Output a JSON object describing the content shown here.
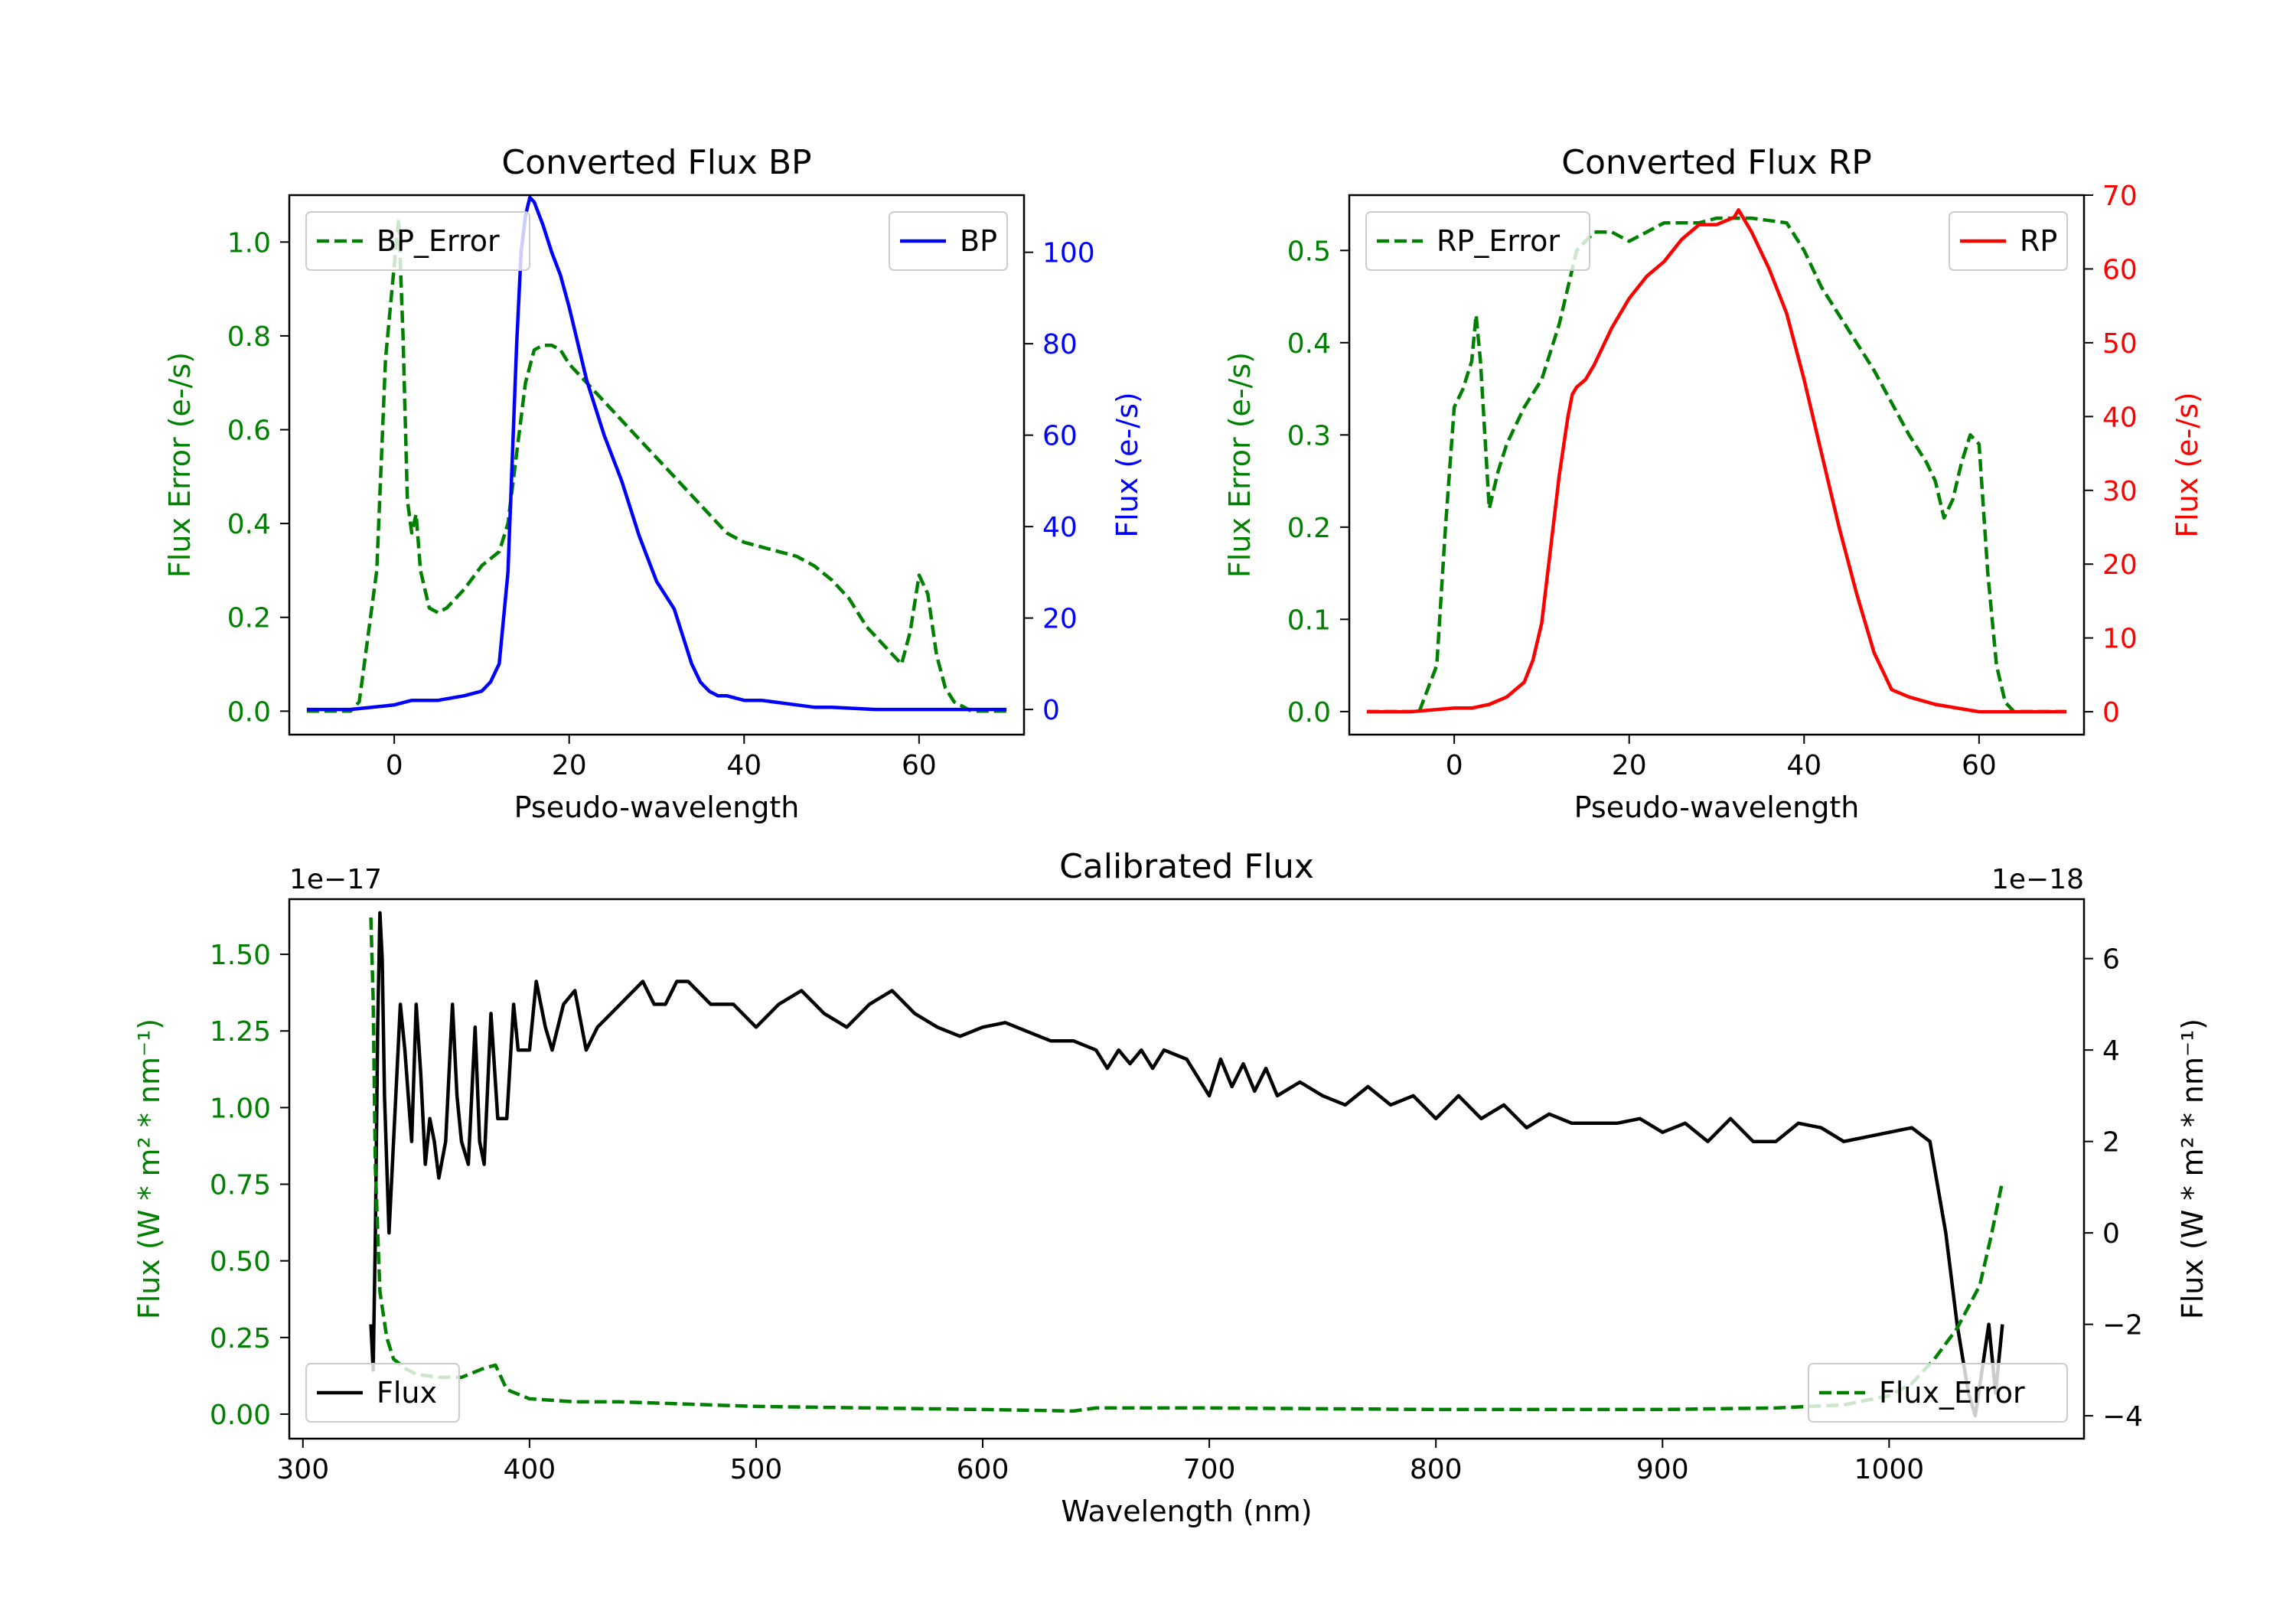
{
  "colors": {
    "green": "#008000",
    "blue": "#0000ff",
    "red": "#ff0000",
    "black": "#000000"
  },
  "chart_data": [
    {
      "type": "line",
      "title": "Converted Flux BP",
      "xlabel": "Pseudo-wavelength",
      "xlim": [
        -12,
        72
      ],
      "xticks": [
        0,
        20,
        40,
        60
      ],
      "left_axis": {
        "label": "Flux Error (e-/s)",
        "color": "green",
        "ylim": [
          -0.05,
          1.1
        ],
        "ticks": [
          0.0,
          0.2,
          0.4,
          0.6,
          0.8,
          1.0
        ],
        "tick_labels": [
          "0.0",
          "0.2",
          "0.4",
          "0.6",
          "0.8",
          "1.0"
        ],
        "offset_label": ""
      },
      "right_axis": {
        "label": "Flux (e-/s)",
        "color": "blue",
        "ylim": [
          -5.5,
          112.5
        ],
        "ticks": [
          0,
          20,
          40,
          60,
          80,
          100
        ],
        "tick_labels": [
          "0",
          "20",
          "40",
          "60",
          "80",
          "100"
        ],
        "offset_label": ""
      },
      "series": [
        {
          "name": "BP_Error",
          "axis": "left",
          "color": "green",
          "style": "dashed",
          "legend": "top-left",
          "x": [
            -10,
            -5,
            -4,
            -2,
            -1,
            0,
            0.5,
            1,
            1.5,
            2,
            2.5,
            3,
            4,
            5,
            6,
            8,
            10,
            12,
            13,
            14,
            15,
            16,
            17,
            18,
            19,
            20,
            22,
            24,
            26,
            28,
            30,
            32,
            34,
            36,
            38,
            40,
            44,
            46,
            48,
            50,
            52,
            54,
            56,
            58,
            59,
            60,
            61,
            62,
            63,
            64,
            66,
            70
          ],
          "y": [
            0.0,
            0.0,
            0.02,
            0.3,
            0.75,
            0.95,
            1.05,
            0.8,
            0.45,
            0.38,
            0.42,
            0.3,
            0.22,
            0.21,
            0.22,
            0.26,
            0.31,
            0.34,
            0.4,
            0.55,
            0.7,
            0.77,
            0.78,
            0.78,
            0.77,
            0.74,
            0.7,
            0.66,
            0.62,
            0.58,
            0.54,
            0.5,
            0.46,
            0.42,
            0.38,
            0.36,
            0.34,
            0.33,
            0.31,
            0.28,
            0.24,
            0.18,
            0.14,
            0.1,
            0.17,
            0.29,
            0.25,
            0.12,
            0.05,
            0.02,
            0.0,
            0.0
          ]
        },
        {
          "name": "BP",
          "axis": "right",
          "color": "blue",
          "style": "solid",
          "legend": "top-right",
          "x": [
            -10,
            -5,
            0,
            2,
            5,
            8,
            10,
            11,
            12,
            13,
            13.5,
            14,
            14.5,
            15,
            15.5,
            16,
            17,
            18,
            19,
            20,
            22,
            24,
            26,
            28,
            30,
            32,
            33,
            34,
            35,
            36,
            37,
            38,
            40,
            42,
            44,
            46,
            48,
            50,
            55,
            60,
            65,
            70
          ],
          "y": [
            0,
            0,
            1,
            2,
            2,
            3,
            4,
            6,
            10,
            30,
            55,
            80,
            100,
            108,
            112,
            111,
            106,
            100,
            95,
            88,
            72,
            60,
            50,
            38,
            28,
            22,
            16,
            10,
            6,
            4,
            3,
            3,
            2,
            2,
            1.5,
            1,
            0.5,
            0.5,
            0,
            0,
            0,
            0
          ]
        }
      ]
    },
    {
      "type": "line",
      "title": "Converted Flux RP",
      "xlabel": "Pseudo-wavelength",
      "xlim": [
        -12,
        72
      ],
      "xticks": [
        0,
        20,
        40,
        60
      ],
      "left_axis": {
        "label": "Flux Error (e-/s)",
        "color": "green",
        "ylim": [
          -0.025,
          0.56
        ],
        "ticks": [
          0.0,
          0.1,
          0.2,
          0.3,
          0.4,
          0.5
        ],
        "tick_labels": [
          "0.0",
          "0.1",
          "0.2",
          "0.3",
          "0.4",
          "0.5"
        ],
        "offset_label": ""
      },
      "right_axis": {
        "label": "Flux (e-/s)",
        "color": "red",
        "ylim": [
          -3.1,
          70
        ],
        "ticks": [
          0,
          10,
          20,
          30,
          40,
          50,
          60,
          70
        ],
        "tick_labels": [
          "0",
          "10",
          "20",
          "30",
          "40",
          "50",
          "60",
          "70"
        ],
        "offset_label": ""
      },
      "series": [
        {
          "name": "RP_Error",
          "axis": "left",
          "color": "green",
          "style": "dashed",
          "legend": "top-left",
          "x": [
            -10,
            -4,
            -2,
            -1,
            0,
            1,
            2,
            2.5,
            3,
            4,
            5,
            6,
            8,
            10,
            12,
            14,
            16,
            18,
            20,
            22,
            24,
            26,
            28,
            30,
            34,
            38,
            40,
            42,
            44,
            48,
            52,
            54,
            55,
            56,
            57,
            58,
            59,
            60,
            61,
            62,
            63,
            64,
            66,
            70
          ],
          "y": [
            0.0,
            0.0,
            0.05,
            0.2,
            0.33,
            0.35,
            0.38,
            0.43,
            0.38,
            0.22,
            0.26,
            0.29,
            0.33,
            0.36,
            0.42,
            0.5,
            0.52,
            0.52,
            0.51,
            0.52,
            0.53,
            0.53,
            0.53,
            0.535,
            0.535,
            0.53,
            0.5,
            0.46,
            0.43,
            0.37,
            0.3,
            0.27,
            0.25,
            0.21,
            0.23,
            0.27,
            0.3,
            0.29,
            0.15,
            0.05,
            0.01,
            0.0,
            0.0,
            0.0
          ]
        },
        {
          "name": "RP",
          "axis": "right",
          "color": "red",
          "style": "solid",
          "legend": "top-right",
          "x": [
            -10,
            -5,
            0,
            2,
            4,
            6,
            8,
            9,
            10,
            11,
            12,
            13,
            13.5,
            14,
            15,
            16,
            18,
            20,
            22,
            24,
            26,
            28,
            30,
            32,
            32.5,
            34,
            36,
            38,
            40,
            42,
            44,
            46,
            48,
            50,
            52,
            55,
            60,
            65,
            70
          ],
          "y": [
            0,
            0,
            0.5,
            0.5,
            1,
            2,
            4,
            7,
            12,
            22,
            32,
            40,
            43,
            44,
            45,
            47,
            52,
            56,
            59,
            61,
            64,
            66,
            66,
            67,
            68,
            65,
            60,
            54,
            45,
            35,
            25,
            16,
            8,
            3,
            2,
            1,
            0,
            0,
            0
          ]
        }
      ]
    },
    {
      "type": "line",
      "title": "Calibrated Flux",
      "xlabel": "Wavelength (nm)",
      "xlim": [
        294,
        1086
      ],
      "xticks": [
        300,
        400,
        500,
        600,
        700,
        800,
        900,
        1000
      ],
      "left_axis": {
        "label": "Flux (W * m² * nm⁻¹)",
        "color": "green",
        "ylim": [
          -0.08,
          1.68
        ],
        "ticks": [
          0.0,
          0.25,
          0.5,
          0.75,
          1.0,
          1.25,
          1.5
        ],
        "tick_labels": [
          "0.00",
          "0.25",
          "0.50",
          "0.75",
          "1.00",
          "1.25",
          "1.50"
        ],
        "offset_label": "1e−17"
      },
      "right_axis": {
        "label": "Flux (W * m² * nm⁻¹)",
        "color": "black",
        "ylim": [
          -4.5,
          7.3
        ],
        "ticks": [
          -4,
          -2,
          0,
          2,
          4,
          6
        ],
        "tick_labels": [
          "−4",
          "−2",
          "0",
          "2",
          "4",
          "6"
        ],
        "offset_label": "1e−18"
      },
      "series": [
        {
          "name": "Flux",
          "axis": "right",
          "color": "black",
          "style": "solid",
          "legend": "bottom-left",
          "x": [
            330,
            331,
            332,
            333,
            334,
            335,
            336,
            338,
            340,
            343,
            345,
            348,
            350,
            352,
            354,
            356,
            358,
            360,
            363,
            366,
            368,
            370,
            373,
            376,
            378,
            380,
            383,
            386,
            390,
            393,
            395,
            400,
            403,
            407,
            410,
            415,
            420,
            425,
            430,
            440,
            450,
            455,
            460,
            465,
            470,
            480,
            490,
            500,
            510,
            520,
            530,
            540,
            550,
            560,
            570,
            580,
            590,
            600,
            610,
            620,
            630,
            640,
            650,
            655,
            660,
            665,
            670,
            675,
            680,
            690,
            700,
            705,
            710,
            715,
            720,
            725,
            730,
            740,
            750,
            760,
            770,
            780,
            790,
            800,
            810,
            820,
            830,
            840,
            850,
            860,
            870,
            880,
            890,
            900,
            910,
            920,
            930,
            940,
            950,
            960,
            970,
            980,
            990,
            1000,
            1010,
            1018,
            1025,
            1030,
            1035,
            1038,
            1041,
            1044,
            1047,
            1050
          ],
          "y": [
            -2.0,
            -3.0,
            0.0,
            4.5,
            7.0,
            6.0,
            3.0,
            0.0,
            2.0,
            5.0,
            4.0,
            2.0,
            5.0,
            3.5,
            1.5,
            2.5,
            2.0,
            1.2,
            2.0,
            5.0,
            3.0,
            2.0,
            1.5,
            4.5,
            2.0,
            1.5,
            4.8,
            2.5,
            2.5,
            5.0,
            4.0,
            4.0,
            5.5,
            4.5,
            4.0,
            5.0,
            5.3,
            4.0,
            4.5,
            5.0,
            5.5,
            5.0,
            5.0,
            5.5,
            5.5,
            5.0,
            5.0,
            4.5,
            5.0,
            5.3,
            4.8,
            4.5,
            5.0,
            5.3,
            4.8,
            4.5,
            4.3,
            4.5,
            4.6,
            4.4,
            4.2,
            4.2,
            4.0,
            3.6,
            4.0,
            3.7,
            4.0,
            3.6,
            4.0,
            3.8,
            3.0,
            3.8,
            3.2,
            3.7,
            3.1,
            3.6,
            3.0,
            3.3,
            3.0,
            2.8,
            3.2,
            2.8,
            3.0,
            2.5,
            3.0,
            2.5,
            2.8,
            2.3,
            2.6,
            2.4,
            2.4,
            2.4,
            2.5,
            2.2,
            2.4,
            2.0,
            2.5,
            2.0,
            2.0,
            2.4,
            2.3,
            2.0,
            2.1,
            2.2,
            2.3,
            2.0,
            0.0,
            -2.0,
            -3.5,
            -4.0,
            -3.0,
            -2.0,
            -3.5,
            -2.0
          ]
        },
        {
          "name": "Flux_Error",
          "axis": "left",
          "color": "green",
          "style": "dashed",
          "legend": "bottom-right",
          "x": [
            330,
            331,
            332,
            334,
            337,
            340,
            345,
            350,
            360,
            370,
            380,
            385,
            390,
            400,
            420,
            440,
            460,
            500,
            550,
            600,
            640,
            650,
            700,
            800,
            900,
            950,
            980,
            1000,
            1010,
            1020,
            1030,
            1040,
            1045,
            1050
          ],
          "y": [
            1.62,
            1.35,
            0.8,
            0.4,
            0.25,
            0.18,
            0.15,
            0.13,
            0.12,
            0.12,
            0.15,
            0.16,
            0.08,
            0.05,
            0.04,
            0.04,
            0.035,
            0.025,
            0.02,
            0.015,
            0.01,
            0.02,
            0.02,
            0.015,
            0.015,
            0.02,
            0.03,
            0.06,
            0.1,
            0.18,
            0.28,
            0.42,
            0.58,
            0.76
          ]
        }
      ]
    }
  ]
}
